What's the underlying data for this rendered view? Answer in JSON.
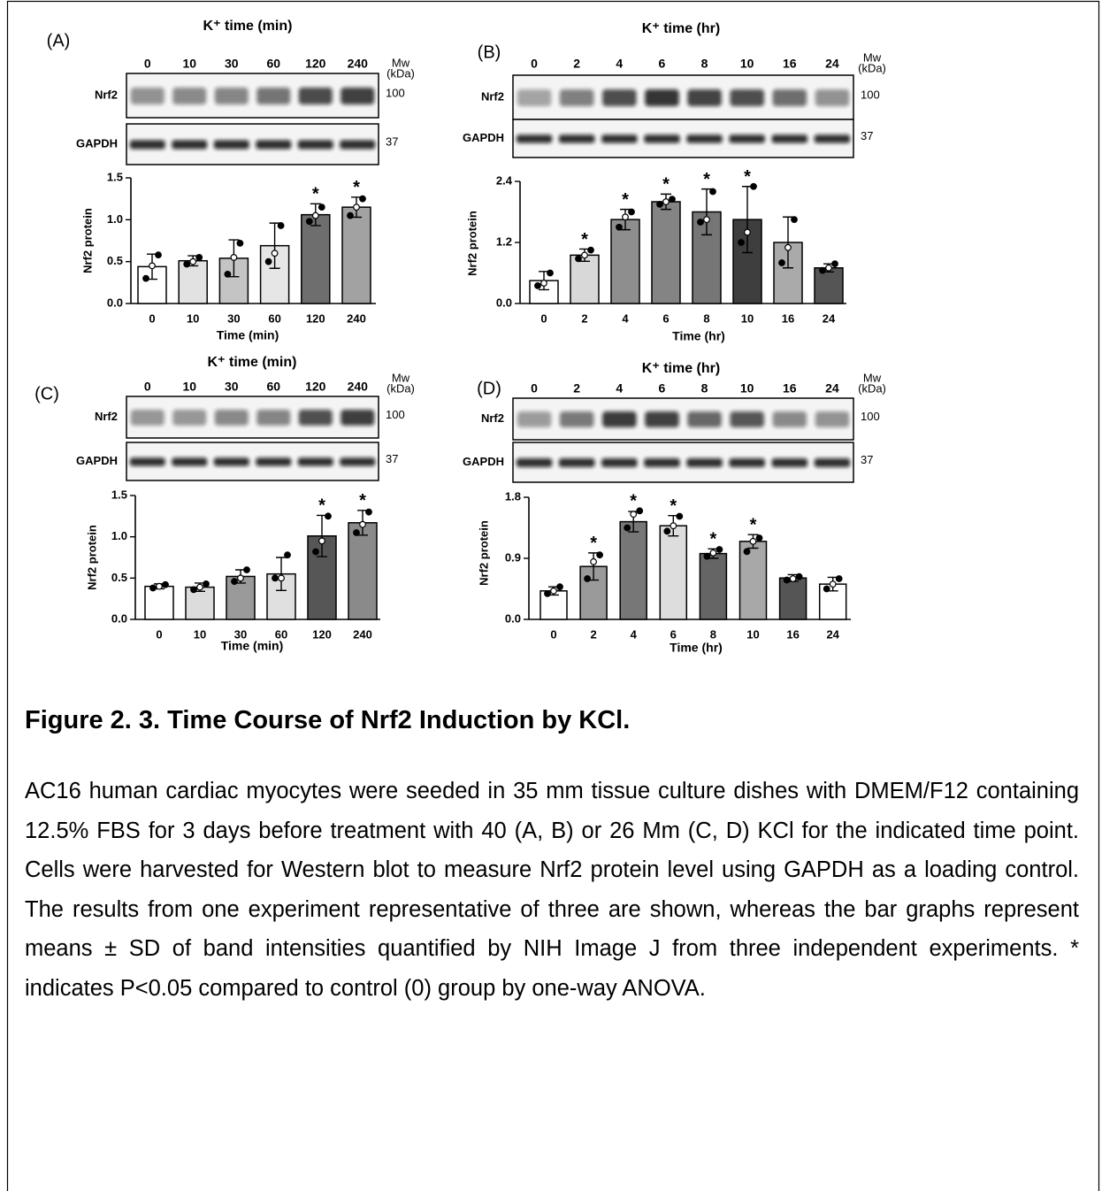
{
  "chart_data": [
    {
      "type": "bar",
      "panel": "(A)",
      "blot_title": "K⁺ time (min)",
      "mw_label": "Mw",
      "mw_unit": "(kDa)",
      "blot_rows": [
        "Nrf2",
        "GAPDH"
      ],
      "blot_markers": [
        "100",
        "37"
      ],
      "ylabel": "Nrf2 protein",
      "xlabel": "Time (min)",
      "categories": [
        "0",
        "10",
        "30",
        "60",
        "120",
        "240"
      ],
      "values": [
        0.44,
        0.51,
        0.54,
        0.69,
        1.06,
        1.15
      ],
      "errors": [
        0.15,
        0.06,
        0.22,
        0.27,
        0.13,
        0.12
      ],
      "points": [
        [
          0.3,
          0.45,
          0.58
        ],
        [
          0.47,
          0.5,
          0.55
        ],
        [
          0.35,
          0.55,
          0.72
        ],
        [
          0.5,
          0.6,
          0.93
        ],
        [
          0.98,
          1.05,
          1.15
        ],
        [
          1.05,
          1.15,
          1.25
        ]
      ],
      "significance": [
        null,
        null,
        null,
        null,
        "*",
        "*"
      ],
      "colors": [
        "#ffffff",
        "#e2e2e2",
        "#c4c4c4",
        "#e6e6e6",
        "#6e6e6e",
        "#a2a2a2"
      ],
      "ylim": [
        0,
        1.5
      ],
      "yticks": [
        {
          "value": 0,
          "label": "0.0"
        },
        0.5,
        {
          "value": 1,
          "label": "1.0"
        },
        1.5
      ]
    },
    {
      "type": "bar",
      "panel": "(B)",
      "blot_title": "K⁺ time (hr)",
      "mw_label": "Mw",
      "mw_unit": "(kDa)",
      "blot_rows": [
        "Nrf2",
        "GAPDH"
      ],
      "blot_markers": [
        "100",
        "37"
      ],
      "ylabel": "Nrf2 protein",
      "xlabel": "Time (hr)",
      "categories": [
        "0",
        "2",
        "4",
        "6",
        "8",
        "10",
        "16",
        "24"
      ],
      "values": [
        0.45,
        0.95,
        1.65,
        2.0,
        1.8,
        1.65,
        1.2,
        0.7
      ],
      "errors": [
        0.18,
        0.12,
        0.2,
        0.15,
        0.45,
        0.65,
        0.5,
        0.08
      ],
      "points": [
        [
          0.35,
          0.4,
          0.6
        ],
        [
          0.88,
          0.95,
          1.05
        ],
        [
          1.5,
          1.7,
          1.8
        ],
        [
          1.95,
          2.0,
          2.05
        ],
        [
          1.6,
          1.65,
          2.2
        ],
        [
          1.2,
          1.4,
          2.3
        ],
        [
          0.8,
          1.1,
          1.65
        ],
        [
          0.65,
          0.7,
          0.78
        ]
      ],
      "significance": [
        null,
        "*",
        "*",
        "*",
        "*",
        "*",
        null,
        null
      ],
      "colors": [
        "#ffffff",
        "#d8d8d8",
        "#8e8e8e",
        "#848484",
        "#767676",
        "#3e3e3e",
        "#aaaaaa",
        "#555555"
      ],
      "ylim": [
        0,
        2.4
      ],
      "yticks": [
        {
          "value": 0,
          "label": "0.0"
        },
        1.2,
        2.4
      ]
    },
    {
      "type": "bar",
      "panel": "(C)",
      "blot_title": "K⁺ time (min)",
      "mw_label": "Mw",
      "mw_unit": "(kDa)",
      "blot_rows": [
        "Nrf2",
        "GAPDH"
      ],
      "blot_markers": [
        "100",
        "37"
      ],
      "ylabel": "Nrf2 protein",
      "xlabel": "Time (min)",
      "categories": [
        "0",
        "10",
        "30",
        "60",
        "120",
        "240"
      ],
      "values": [
        0.4,
        0.39,
        0.52,
        0.55,
        1.01,
        1.17
      ],
      "errors": [
        0.03,
        0.05,
        0.08,
        0.2,
        0.25,
        0.15
      ],
      "points": [
        [
          0.38,
          0.4,
          0.42
        ],
        [
          0.36,
          0.39,
          0.43
        ],
        [
          0.46,
          0.5,
          0.6
        ],
        [
          0.5,
          0.5,
          0.78
        ],
        [
          0.82,
          0.95,
          1.25
        ],
        [
          1.05,
          1.15,
          1.3
        ]
      ],
      "significance": [
        null,
        null,
        null,
        null,
        "*",
        "*"
      ],
      "colors": [
        "#ffffff",
        "#dcdcdc",
        "#9a9a9a",
        "#e0e0e0",
        "#565656",
        "#8a8a8a"
      ],
      "ylim": [
        0,
        1.5
      ],
      "yticks": [
        {
          "value": 0,
          "label": "0.0"
        },
        0.5,
        {
          "value": 1,
          "label": "1.0"
        },
        1.5
      ]
    },
    {
      "type": "bar",
      "panel": "(D)",
      "blot_title": "K⁺ time (hr)",
      "mw_label": "Mw",
      "mw_unit": "(kDa)",
      "blot_rows": [
        "Nrf2",
        "GAPDH"
      ],
      "blot_markers": [
        "100",
        "37"
      ],
      "ylabel": "Nrf2 protein",
      "xlabel": "Time (hr)",
      "categories": [
        "0",
        "2",
        "4",
        "6",
        "8",
        "10",
        "16",
        "24"
      ],
      "values": [
        0.42,
        0.78,
        1.44,
        1.38,
        0.97,
        1.15,
        0.61,
        0.52
      ],
      "errors": [
        0.06,
        0.2,
        0.15,
        0.15,
        0.07,
        0.1,
        0.05,
        0.1
      ],
      "points": [
        [
          0.38,
          0.42,
          0.48
        ],
        [
          0.6,
          0.85,
          0.95
        ],
        [
          1.35,
          1.55,
          1.6
        ],
        [
          1.3,
          1.38,
          1.52
        ],
        [
          0.93,
          0.98,
          1.03
        ],
        [
          1.0,
          1.15,
          1.2
        ],
        [
          0.58,
          0.6,
          0.63
        ],
        [
          0.45,
          0.52,
          0.6
        ]
      ],
      "significance": [
        null,
        "*",
        "*",
        "*",
        "*",
        "*",
        null,
        null
      ],
      "colors": [
        "#ffffff",
        "#9a9a9a",
        "#777777",
        "#dddddd",
        "#656565",
        "#a8a8a8",
        "#555555",
        "#ffffff"
      ],
      "ylim": [
        0,
        1.8
      ],
      "yticks": [
        {
          "value": 0,
          "label": "0.0"
        },
        0.9,
        1.8
      ]
    }
  ],
  "caption": {
    "title": "Figure 2. 3. Time Course of Nrf2 Induction by KCl.",
    "text": "AC16 human cardiac myocytes were seeded in 35 mm tissue culture dishes with DMEM/F12 containing 12.5% FBS for 3 days before treatment with 40 (A, B) or 26 Mm (C, D) KCl for the indicated time point.  Cells were harvested for Western blot to measure Nrf2 protein level using GAPDH as a loading control.  The results from one experiment representative of three are shown, whereas the bar graphs represent means ± SD of band intensities quantified by NIH Image J from three independent experiments. * indicates P<0.05 compared to control (0) group by one-way ANOVA."
  }
}
